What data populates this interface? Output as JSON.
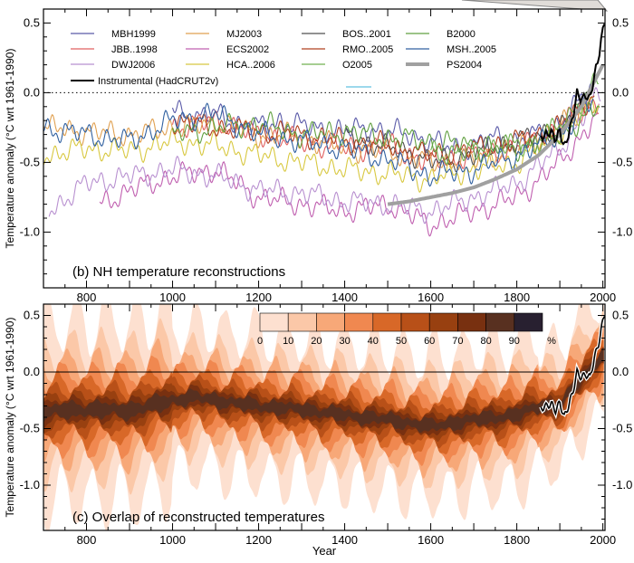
{
  "figure": {
    "x_label": "Year",
    "x_ticks": [
      "800",
      "1000",
      "1200",
      "1400",
      "1600",
      "1800",
      "2000"
    ]
  },
  "chart_data": [
    {
      "type": "line",
      "title": "(b) NH temperature reconstructions",
      "xlabel": "",
      "ylabel": "Temperature anomaly  (°C wrt 1961-1990)",
      "xlim": [
        700,
        2005
      ],
      "ylim": [
        -1.4,
        0.6
      ],
      "y_ticks_left": [
        "0.5",
        "0.0",
        "-0.5",
        "-1.0"
      ],
      "y_ticks_right": [
        "0.5",
        "0.0",
        "-0.5",
        "-1.0"
      ],
      "grid": false,
      "zero_line": "dotted",
      "legend_position": "top",
      "legend": [
        {
          "name": "MBH1999",
          "color": "#5a5aa8"
        },
        {
          "name": "MJ2003",
          "color": "#e0a050"
        },
        {
          "name": "BOS..2001",
          "color": "#505050"
        },
        {
          "name": "B2000",
          "color": "#60a040"
        },
        {
          "name": "JBB..1998",
          "color": "#e06060"
        },
        {
          "name": "ECS2002",
          "color": "#c060b0"
        },
        {
          "name": "RMO..2005",
          "color": "#b04020"
        },
        {
          "name": "MSH..2005",
          "color": "#3060a0"
        },
        {
          "name": "DWJ2006",
          "color": "#b890d0"
        },
        {
          "name": "HCA..2006",
          "color": "#d8c840"
        },
        {
          "name": "O2005",
          "color": "#70b050"
        },
        {
          "name": "PS2004",
          "color": "#a0a0a0"
        },
        {
          "name": "Instrumental (HadCRUT2v)",
          "color": "#000000"
        }
      ],
      "series": [
        {
          "name": "MBH1999",
          "start": 1000,
          "end": 1980,
          "x": [
            1000,
            1050,
            1100,
            1150,
            1200,
            1250,
            1300,
            1350,
            1400,
            1450,
            1500,
            1550,
            1600,
            1650,
            1700,
            1750,
            1800,
            1850,
            1900,
            1950,
            1980
          ],
          "y": [
            -0.1,
            -0.18,
            -0.15,
            -0.22,
            -0.25,
            -0.2,
            -0.24,
            -0.26,
            -0.28,
            -0.25,
            -0.28,
            -0.3,
            -0.35,
            -0.4,
            -0.38,
            -0.32,
            -0.35,
            -0.3,
            -0.22,
            -0.05,
            0.05
          ]
        },
        {
          "name": "JBB..1998",
          "start": 1000,
          "end": 1991,
          "x": [
            1000,
            1100,
            1200,
            1300,
            1400,
            1500,
            1600,
            1700,
            1800,
            1900,
            1991
          ],
          "y": [
            -0.25,
            -0.2,
            -0.3,
            -0.35,
            -0.4,
            -0.38,
            -0.5,
            -0.45,
            -0.4,
            -0.25,
            -0.05
          ]
        },
        {
          "name": "MJ2003",
          "start": 700,
          "end": 1980,
          "x": [
            700,
            800,
            900,
            1000,
            1100,
            1200,
            1300,
            1400,
            1500,
            1600,
            1700,
            1800,
            1900,
            1980
          ],
          "y": [
            -0.25,
            -0.28,
            -0.3,
            -0.25,
            -0.22,
            -0.3,
            -0.32,
            -0.4,
            -0.42,
            -0.5,
            -0.48,
            -0.4,
            -0.25,
            -0.05
          ]
        },
        {
          "name": "ECS2002",
          "start": 831,
          "end": 1992,
          "x": [
            831,
            900,
            1000,
            1100,
            1200,
            1300,
            1400,
            1500,
            1600,
            1700,
            1800,
            1900,
            1992
          ],
          "y": [
            -0.8,
            -0.7,
            -0.6,
            -0.55,
            -0.75,
            -0.8,
            -0.85,
            -0.8,
            -0.95,
            -0.85,
            -0.75,
            -0.5,
            -0.15
          ]
        },
        {
          "name": "DWJ2006",
          "start": 713,
          "end": 1995,
          "x": [
            713,
            800,
            900,
            1000,
            1100,
            1200,
            1300,
            1400,
            1500,
            1600,
            1700,
            1800,
            1900,
            1995
          ],
          "y": [
            -0.85,
            -0.65,
            -0.6,
            -0.55,
            -0.6,
            -0.7,
            -0.72,
            -0.78,
            -0.8,
            -0.85,
            -0.75,
            -0.65,
            -0.4,
            0.0
          ]
        },
        {
          "name": "HCA..2006",
          "start": 700,
          "end": 1990,
          "x": [
            700,
            800,
            900,
            1000,
            1100,
            1200,
            1300,
            1400,
            1500,
            1600,
            1700,
            1800,
            1900,
            1990
          ],
          "y": [
            -0.45,
            -0.4,
            -0.42,
            -0.35,
            -0.38,
            -0.45,
            -0.5,
            -0.55,
            -0.58,
            -0.62,
            -0.55,
            -0.5,
            -0.3,
            -0.05
          ]
        },
        {
          "name": "BOS..2001",
          "start": 1402,
          "end": 1960,
          "x": [
            1402,
            1450,
            1500,
            1550,
            1600,
            1650,
            1700,
            1750,
            1800,
            1850,
            1900,
            1960
          ],
          "y": [
            -0.3,
            -0.35,
            -0.4,
            -0.42,
            -0.5,
            -0.48,
            -0.45,
            -0.38,
            -0.35,
            -0.3,
            -0.25,
            -0.1
          ]
        },
        {
          "name": "RMO..2005",
          "start": 1000,
          "end": 1980,
          "x": [
            1000,
            1100,
            1200,
            1300,
            1400,
            1500,
            1600,
            1700,
            1800,
            1900,
            1980
          ],
          "y": [
            -0.2,
            -0.25,
            -0.28,
            -0.3,
            -0.35,
            -0.38,
            -0.45,
            -0.4,
            -0.35,
            -0.25,
            0.0
          ]
        },
        {
          "name": "O2005",
          "start": 1600,
          "end": 1990,
          "x": [
            1600,
            1650,
            1700,
            1750,
            1800,
            1850,
            1900,
            1950,
            1990
          ],
          "y": [
            -0.4,
            -0.45,
            -0.42,
            -0.4,
            -0.38,
            -0.35,
            -0.25,
            -0.05,
            0.1
          ]
        },
        {
          "name": "B2000",
          "start": 1000,
          "end": 1993,
          "x": [
            1000,
            1100,
            1200,
            1300,
            1400,
            1500,
            1600,
            1700,
            1800,
            1900,
            1993
          ],
          "y": [
            -0.3,
            -0.25,
            -0.22,
            -0.3,
            -0.28,
            -0.32,
            -0.35,
            -0.38,
            -0.4,
            -0.3,
            -0.1
          ]
        },
        {
          "name": "MSH..2005",
          "start": 1,
          "end": 1979,
          "x": [
            700,
            800,
            900,
            1000,
            1100,
            1200,
            1300,
            1400,
            1500,
            1600,
            1700,
            1800,
            1900,
            1979
          ],
          "y": [
            -0.25,
            -0.3,
            -0.35,
            -0.2,
            -0.15,
            -0.3,
            -0.35,
            -0.4,
            -0.48,
            -0.6,
            -0.55,
            -0.45,
            -0.3,
            -0.05
          ]
        },
        {
          "name": "PS2004",
          "start": 1500,
          "end": 2000,
          "x": [
            1500,
            1550,
            1600,
            1650,
            1700,
            1750,
            1800,
            1850,
            1900,
            1950,
            2000
          ],
          "y": [
            -0.8,
            -0.78,
            -0.75,
            -0.72,
            -0.68,
            -0.62,
            -0.55,
            -0.45,
            -0.3,
            -0.1,
            0.2
          ]
        },
        {
          "name": "Instrumental (HadCRUT2v)",
          "start": 1856,
          "end": 2004,
          "x": [
            1856,
            1870,
            1880,
            1890,
            1900,
            1910,
            1920,
            1930,
            1940,
            1950,
            1960,
            1970,
            1980,
            1990,
            2000,
            2004
          ],
          "y": [
            -0.32,
            -0.3,
            -0.28,
            -0.34,
            -0.27,
            -0.4,
            -0.3,
            -0.18,
            0.0,
            -0.05,
            -0.02,
            -0.05,
            0.12,
            0.25,
            0.45,
            0.52
          ]
        }
      ]
    },
    {
      "type": "area",
      "title": "(c) Overlap of reconstructed temperatures",
      "xlabel": "Year",
      "ylabel": "Temperature anomaly  (°C wrt 1961-1990)",
      "xlim": [
        700,
        2005
      ],
      "ylim": [
        -1.4,
        0.6
      ],
      "y_ticks_left": [
        "0.5",
        "0.0",
        "-0.5",
        "-1.0"
      ],
      "y_ticks_right": [
        "0.5",
        "0.0",
        "-0.5",
        "-1.0"
      ],
      "zero_line": "solid",
      "colorbar": {
        "labels": [
          "0",
          "10",
          "20",
          "30",
          "40",
          "50",
          "60",
          "70",
          "80",
          "90",
          "%"
        ],
        "colors": [
          "#fde0d0",
          "#fbc8a8",
          "#f7a878",
          "#f08850",
          "#d86828",
          "#b85018",
          "#984010",
          "#783010",
          "#583020",
          "#282030"
        ]
      },
      "center_x": [
        700,
        800,
        900,
        1000,
        1050,
        1100,
        1200,
        1300,
        1400,
        1500,
        1600,
        1700,
        1800,
        1850,
        1900,
        1950,
        2000
      ],
      "center_y": [
        -0.35,
        -0.33,
        -0.34,
        -0.25,
        -0.22,
        -0.25,
        -0.3,
        -0.33,
        -0.38,
        -0.42,
        -0.48,
        -0.42,
        -0.38,
        -0.3,
        -0.3,
        -0.05,
        0.15
      ],
      "instrumental": {
        "x": [
          1856,
          1870,
          1880,
          1890,
          1900,
          1910,
          1920,
          1930,
          1940,
          1950,
          1960,
          1970,
          1980,
          1990,
          2000,
          2004
        ],
        "y": [
          -0.32,
          -0.3,
          -0.28,
          -0.34,
          -0.27,
          -0.4,
          -0.3,
          -0.18,
          0.0,
          -0.05,
          -0.02,
          -0.05,
          0.12,
          0.25,
          0.45,
          0.52
        ]
      }
    }
  ]
}
